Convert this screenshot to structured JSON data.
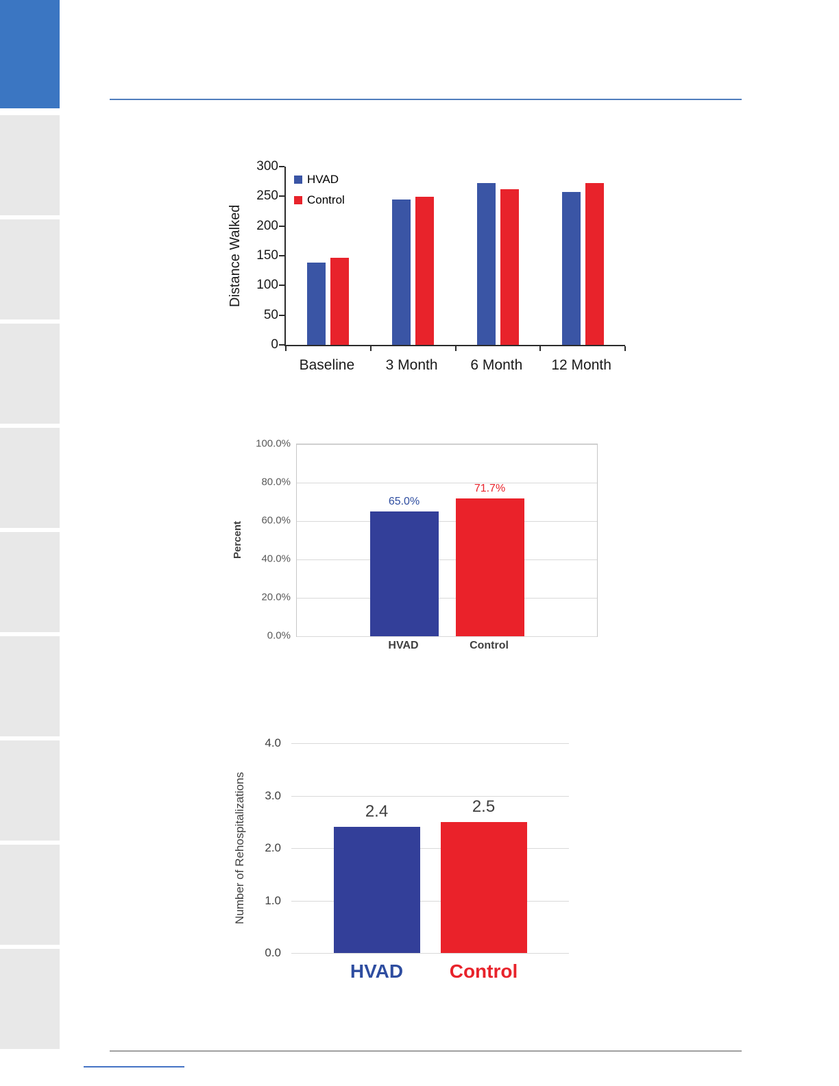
{
  "sidebar": {
    "active_color": "#3b76c2",
    "tab_color": "#e8e8e8",
    "tab_count": 9
  },
  "rules": {
    "top_color": "#4f7dbd",
    "bottom_color": "#a0a0a0",
    "footnote_color": "#4472c4"
  },
  "chart_data": [
    {
      "type": "bar",
      "ylabel": "Distance Walked",
      "categories": [
        "Baseline",
        "3 Month",
        "6 Month",
        "12 Month"
      ],
      "series": [
        {
          "name": "HVAD",
          "color": "#3a55a5",
          "values": [
            138,
            245,
            272,
            257
          ]
        },
        {
          "name": "Control",
          "color": "#e8232b",
          "values": [
            147,
            249,
            262,
            272
          ]
        }
      ],
      "ylim": [
        0,
        300
      ],
      "yticks": [
        300,
        250,
        200,
        150,
        100,
        50,
        0
      ],
      "legend_position": "top-left",
      "grid": false
    },
    {
      "type": "bar",
      "ylabel": "Percent",
      "categories": [
        "HVAD",
        "Control"
      ],
      "values": [
        65.0,
        71.7
      ],
      "data_labels": [
        "65.0%",
        "71.7%"
      ],
      "data_label_colors": [
        "#2e4da0",
        "#e8232b"
      ],
      "bar_colors": [
        "#333f99",
        "#ea222a"
      ],
      "ylim": [
        0,
        100
      ],
      "yticks": [
        "100.0%",
        "80.0%",
        "60.0%",
        "40.0%",
        "20.0%",
        "0.0%"
      ],
      "grid": true,
      "plot_border": true,
      "legend_position": "none"
    },
    {
      "type": "bar",
      "ylabel": "Number of Rehospitalizations",
      "categories": [
        "HVAD",
        "Control"
      ],
      "values": [
        2.4,
        2.5
      ],
      "data_labels": [
        "2.4",
        "2.5"
      ],
      "category_colors": [
        "#2e4da0",
        "#e8232b"
      ],
      "bar_colors": [
        "#333f99",
        "#ea222a"
      ],
      "ylim": [
        0,
        4
      ],
      "yticks": [
        "4.0",
        "3.0",
        "2.0",
        "1.0",
        "0.0"
      ],
      "grid": true,
      "plot_border": false,
      "legend_position": "none"
    }
  ]
}
